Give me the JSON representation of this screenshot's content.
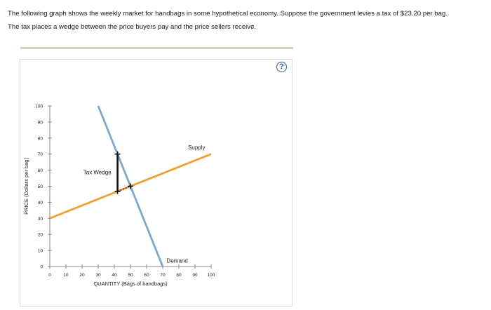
{
  "intro": {
    "line1": "The following graph shows the weekly market for handbags in some hypothetical economy. Suppose the government levies a tax of $23.20 per bag.",
    "line2": "The tax places a wedge between the price buyers pay and the price sellers receive."
  },
  "help": {
    "symbol": "?",
    "icon": "help-circle-icon",
    "color": "#2f5fa7"
  },
  "chart_data": {
    "type": "line",
    "xlabel": "QUANTITY (Bags of handbags)",
    "ylabel": "PRICE (Dollars per bag)",
    "xlim": [
      0,
      100
    ],
    "ylim": [
      0,
      100
    ],
    "xticks": [
      0,
      10,
      20,
      30,
      40,
      50,
      60,
      70,
      80,
      90,
      100
    ],
    "yticks": [
      0,
      10,
      20,
      30,
      40,
      50,
      60,
      70,
      80,
      90,
      100
    ],
    "grid": false,
    "series": [
      {
        "name": "Supply",
        "color": "#f0a030",
        "points": [
          [
            0,
            30
          ],
          [
            100,
            70
          ]
        ]
      },
      {
        "name": "Demand",
        "color": "#7ea7c9",
        "points": [
          [
            30,
            100
          ],
          [
            70,
            0
          ]
        ]
      }
    ],
    "equilibrium": {
      "x": 50,
      "y": 50
    },
    "tax_wedge": {
      "label": "Tax Wedge",
      "quantity": 42,
      "buyer_price": 70,
      "seller_price": 46.8
    }
  }
}
